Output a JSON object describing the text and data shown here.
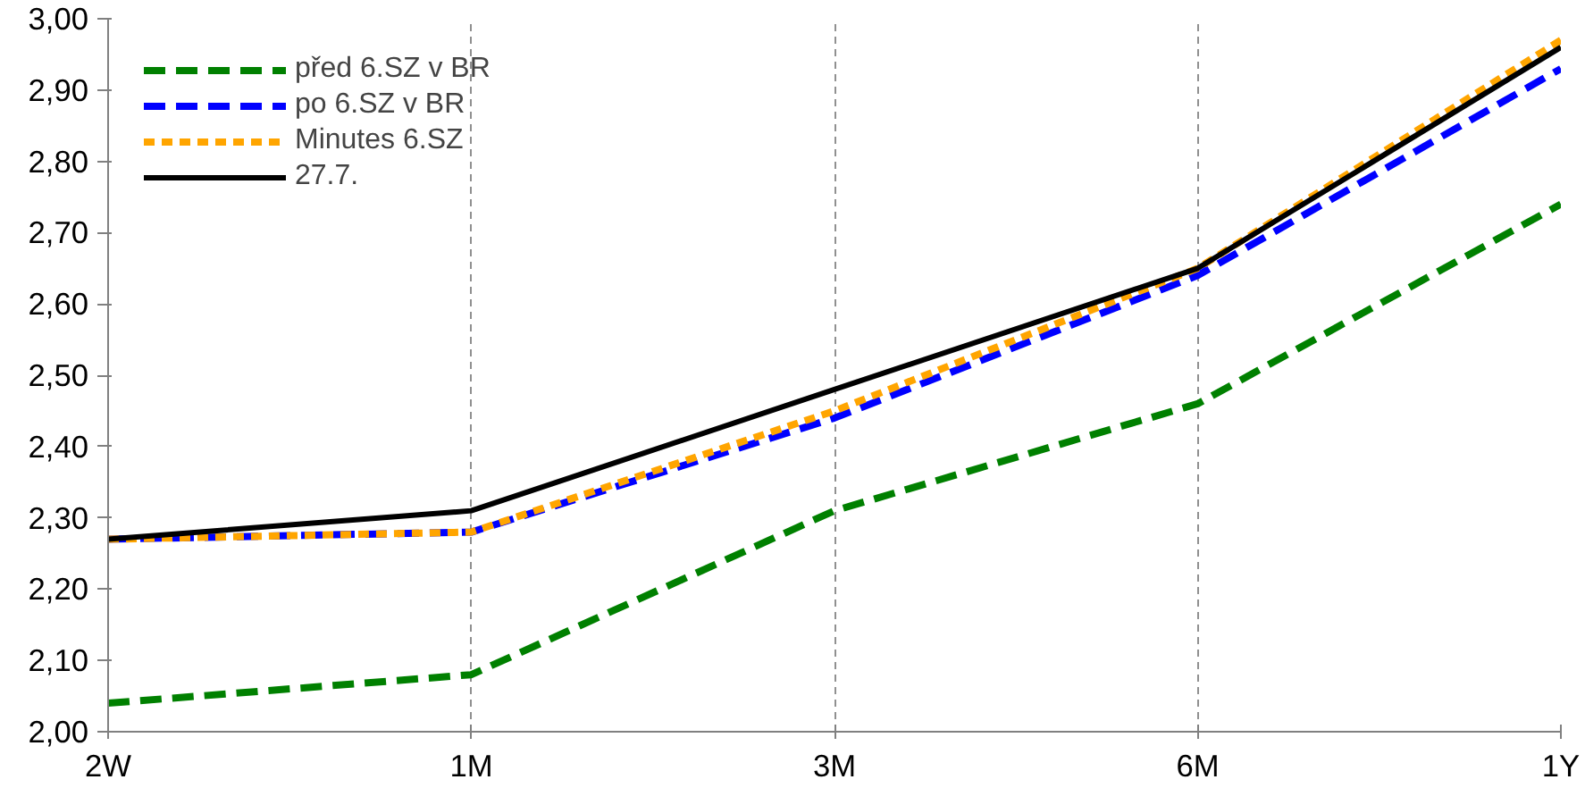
{
  "chart_data": {
    "type": "line",
    "categories": [
      "2W",
      "1M",
      "3M",
      "6M",
      "1Y"
    ],
    "series": [
      {
        "name": "před 6.SZ v BR",
        "color": "#008000",
        "line_style": "dashed",
        "values": [
          2.04,
          2.08,
          2.31,
          2.46,
          2.74
        ]
      },
      {
        "name": "po 6.SZ v BR",
        "color": "#0000ff",
        "line_style": "dashed",
        "values": [
          2.27,
          2.28,
          2.44,
          2.64,
          2.93
        ]
      },
      {
        "name": "Minutes 6.SZ",
        "color": "#ffa500",
        "line_style": "dotted",
        "values": [
          2.27,
          2.28,
          2.45,
          2.65,
          2.97
        ]
      },
      {
        "name": "27.7.",
        "color": "#000000",
        "line_style": "solid",
        "values": [
          2.27,
          2.31,
          2.48,
          2.65,
          2.96
        ]
      }
    ],
    "ylim": [
      2.0,
      3.0
    ],
    "yticks": [
      {
        "value": 2.0,
        "label": "2,00"
      },
      {
        "value": 2.1,
        "label": "2,10"
      },
      {
        "value": 2.2,
        "label": "2,20"
      },
      {
        "value": 2.3,
        "label": "2,30"
      },
      {
        "value": 2.4,
        "label": "2,40"
      },
      {
        "value": 2.5,
        "label": "2,50"
      },
      {
        "value": 2.6,
        "label": "2,60"
      },
      {
        "value": 2.7,
        "label": "2,70"
      },
      {
        "value": 2.8,
        "label": "2,80"
      },
      {
        "value": 2.9,
        "label": "2,90"
      },
      {
        "value": 3.0,
        "label": "3,00"
      }
    ],
    "grid": "x",
    "legend": "top left",
    "marker": "none"
  }
}
